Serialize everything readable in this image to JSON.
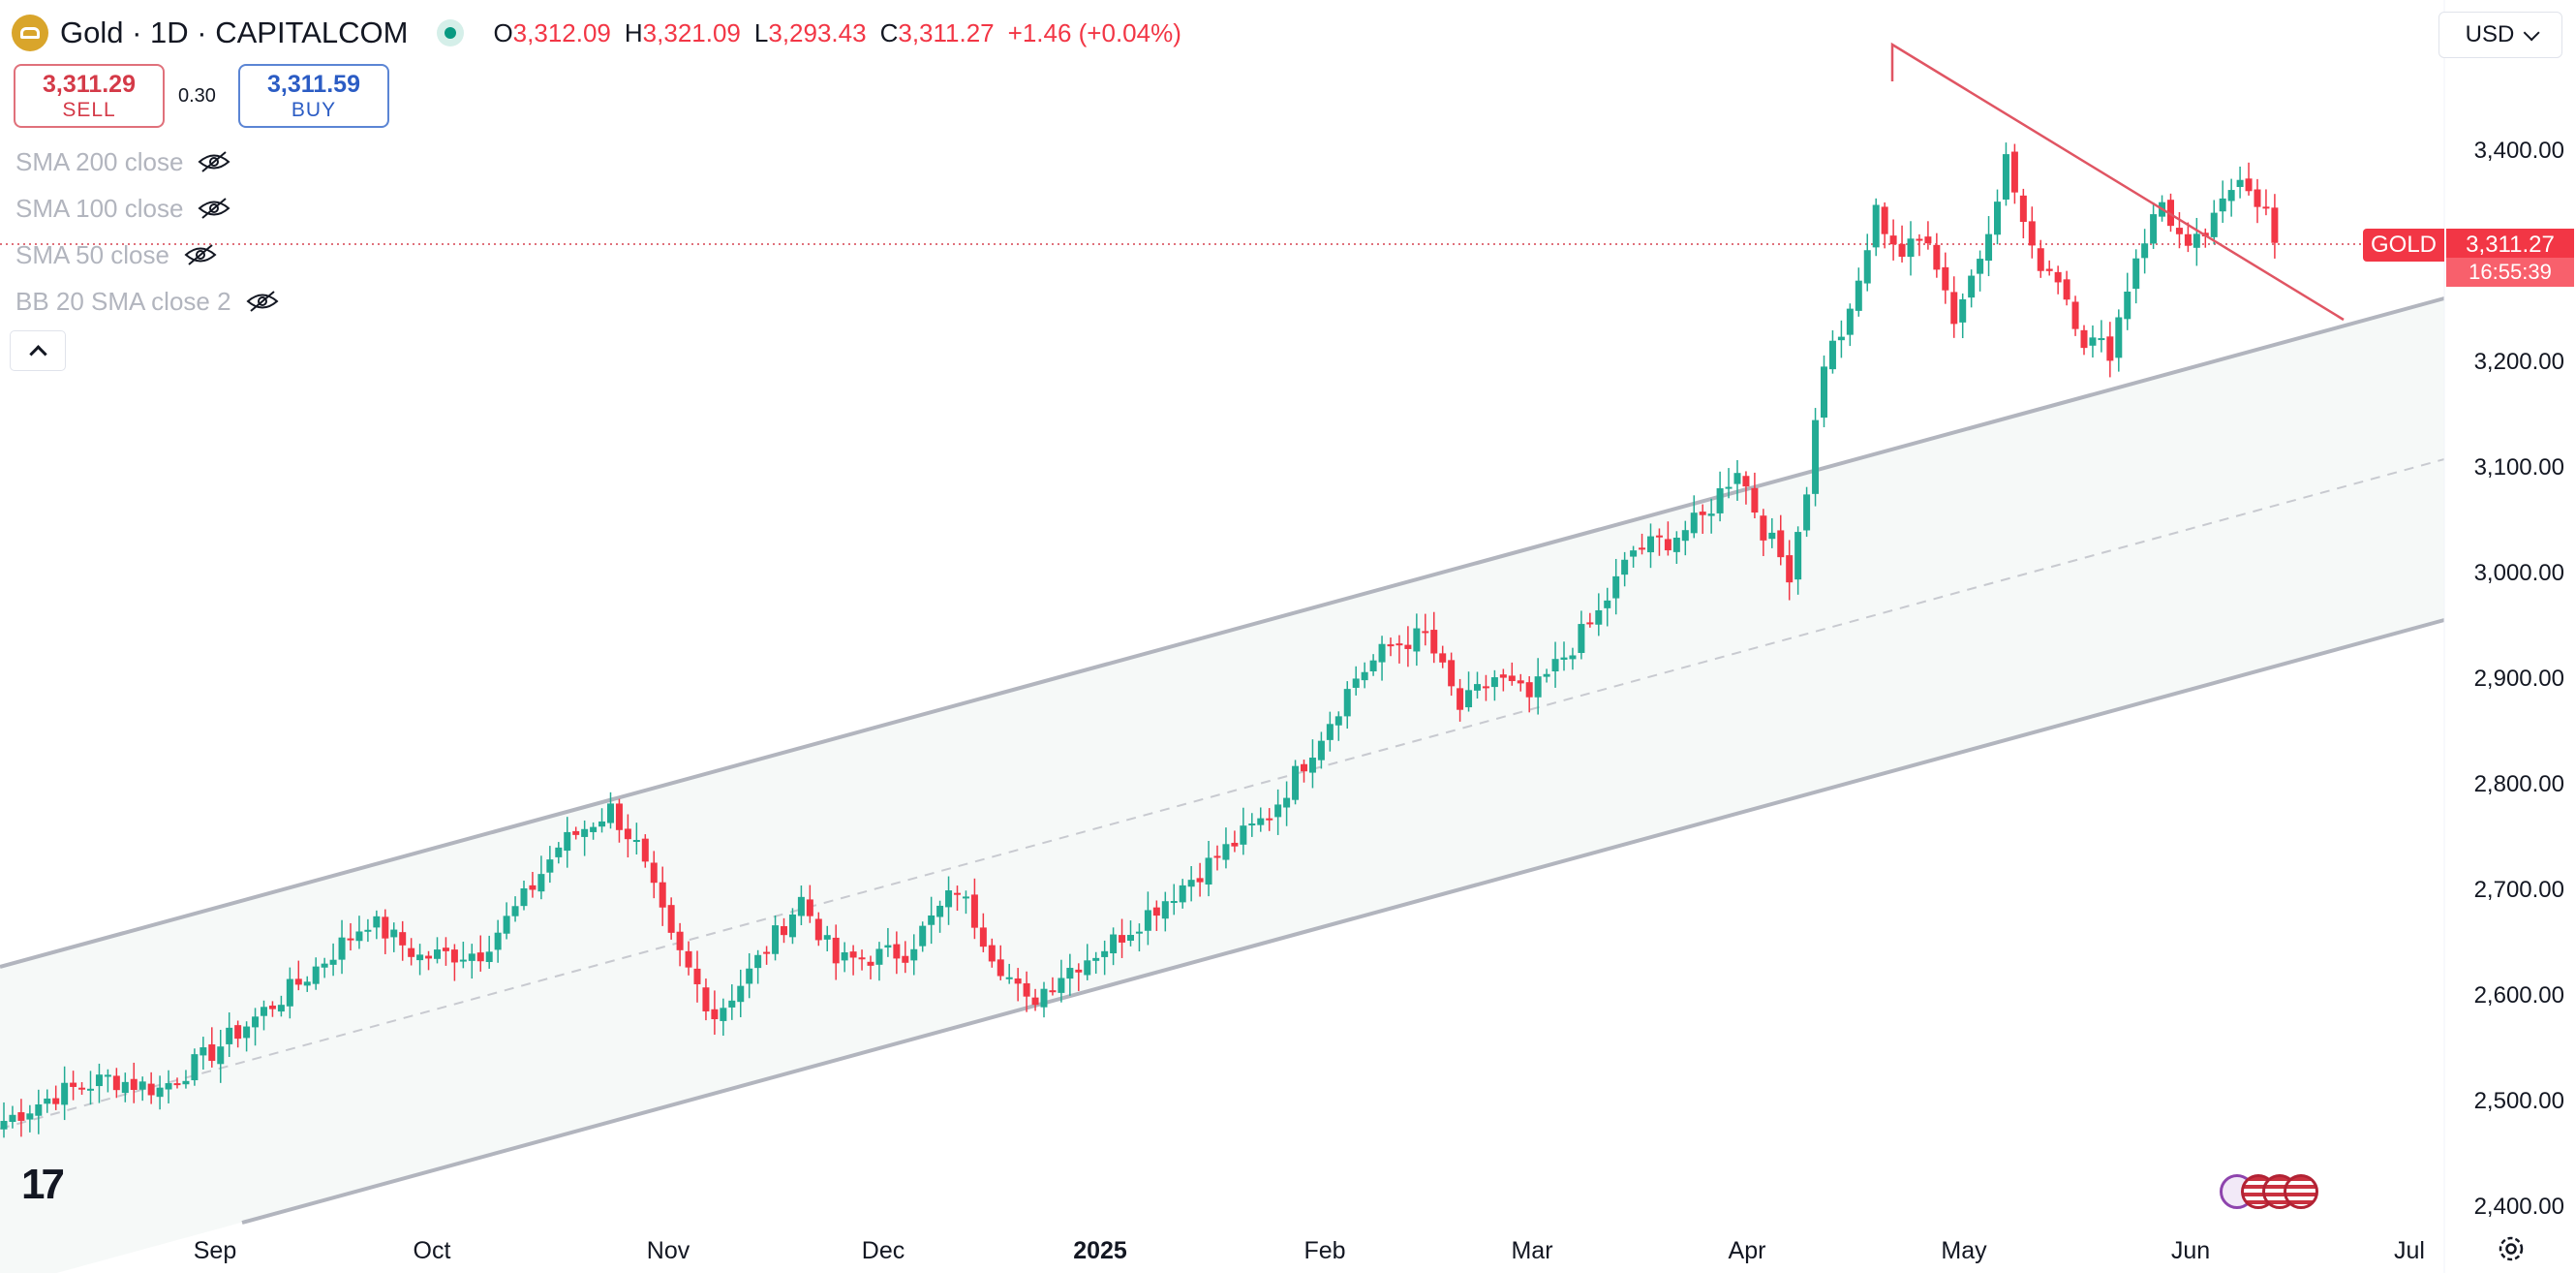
{
  "header": {
    "title": "Gold · 1D · CAPITALCOM",
    "ohlc": [
      {
        "label": "O",
        "value": "3,312.09"
      },
      {
        "label": "H",
        "value": "3,321.09"
      },
      {
        "label": "L",
        "value": "3,293.43"
      },
      {
        "label": "C",
        "value": "3,311.27"
      }
    ],
    "change": "+1.46 (+0.04%)",
    "currency": "USD"
  },
  "trade": {
    "sell_price": "3,311.29",
    "sell_label": "SELL",
    "spread": "0.30",
    "buy_price": "3,311.59",
    "buy_label": "BUY"
  },
  "indicators": [
    "SMA 200 close",
    "SMA 100 close",
    "SMA 50 close",
    "BB 20 SMA close 2"
  ],
  "price_tag": {
    "symbol": "GOLD",
    "price": "3,311.27",
    "countdown": "16:55:39"
  },
  "colors": {
    "up": "#22ab94",
    "down": "#f23645",
    "channel": "#b2b5be",
    "trendline": "#e0717b",
    "channel_fill": "#f6f9f8"
  },
  "chart_data": {
    "type": "candlestick",
    "y_ticks": [
      "2,400.00",
      "2,500.00",
      "2,600.00",
      "2,700.00",
      "2,800.00",
      "2,900.00",
      "3,000.00",
      "3,100.00",
      "3,200.00",
      "3,300.00",
      "3,400.00"
    ],
    "ylim": [
      2385,
      3500
    ],
    "x_ticks": [
      "Sep",
      "Oct",
      "Nov",
      "Dec",
      "2025",
      "Feb",
      "Mar",
      "Apr",
      "May",
      "Jun",
      "Jul"
    ],
    "bold_ticks": [
      "2025"
    ],
    "last_price": 3311.27,
    "anchor_points": [
      [
        0,
        2480
      ],
      [
        6,
        2505
      ],
      [
        12,
        2520
      ],
      [
        18,
        2510
      ],
      [
        24,
        2545
      ],
      [
        34,
        2610
      ],
      [
        42,
        2670
      ],
      [
        48,
        2635
      ],
      [
        55,
        2640
      ],
      [
        60,
        2690
      ],
      [
        64,
        2740
      ],
      [
        70,
        2775
      ],
      [
        73,
        2740
      ],
      [
        77,
        2650
      ],
      [
        82,
        2580
      ],
      [
        86,
        2620
      ],
      [
        92,
        2690
      ],
      [
        96,
        2630
      ],
      [
        104,
        2640
      ],
      [
        110,
        2700
      ],
      [
        114,
        2640
      ],
      [
        118,
        2590
      ],
      [
        122,
        2620
      ],
      [
        128,
        2650
      ],
      [
        134,
        2690
      ],
      [
        140,
        2730
      ],
      [
        146,
        2770
      ],
      [
        150,
        2820
      ],
      [
        156,
        2900
      ],
      [
        160,
        2930
      ],
      [
        164,
        2940
      ],
      [
        168,
        2870
      ],
      [
        172,
        2900
      ],
      [
        176,
        2880
      ],
      [
        180,
        2920
      ],
      [
        184,
        2960
      ],
      [
        188,
        3020
      ],
      [
        192,
        3030
      ],
      [
        196,
        3050
      ],
      [
        200,
        3100
      ],
      [
        203,
        3040
      ],
      [
        206,
        3000
      ],
      [
        208,
        3080
      ],
      [
        210,
        3200
      ],
      [
        213,
        3240
      ],
      [
        216,
        3340
      ],
      [
        219,
        3300
      ],
      [
        222,
        3320
      ],
      [
        225,
        3240
      ],
      [
        228,
        3300
      ],
      [
        231,
        3390
      ],
      [
        234,
        3300
      ],
      [
        237,
        3280
      ],
      [
        240,
        3220
      ],
      [
        243,
        3210
      ],
      [
        246,
        3300
      ],
      [
        249,
        3350
      ],
      [
        252,
        3300
      ],
      [
        255,
        3330
      ],
      [
        258,
        3380
      ],
      [
        261,
        3340
      ],
      [
        262,
        3311
      ]
    ]
  }
}
